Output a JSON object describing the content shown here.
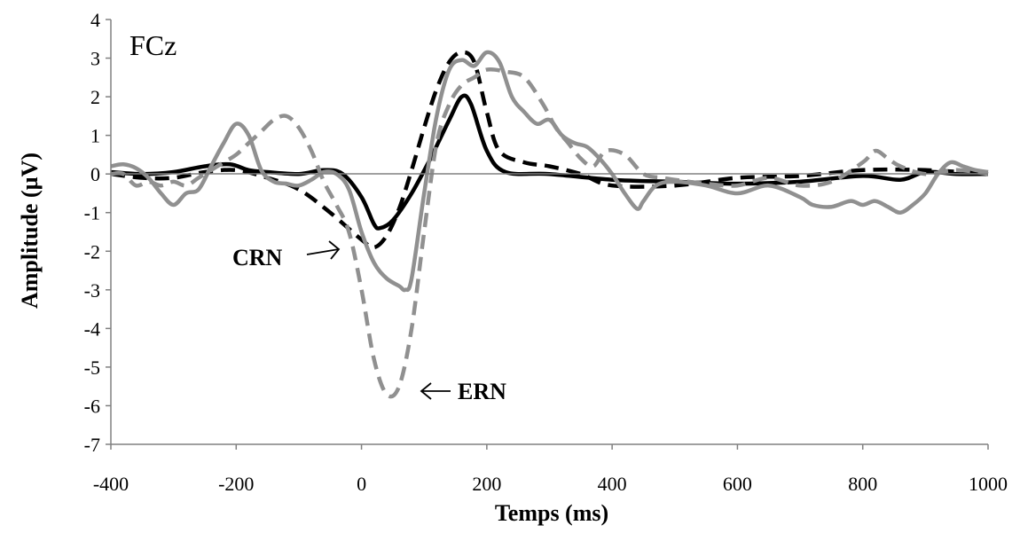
{
  "chart_data": {
    "type": "line",
    "panel_label": "FCz",
    "xlabel": "Temps (ms)",
    "ylabel": "Amplitude (µV)",
    "xlim": [
      -400,
      1000
    ],
    "ylim": [
      -7,
      4
    ],
    "xticks": [
      -400,
      -200,
      0,
      200,
      400,
      600,
      800,
      1000
    ],
    "yticks": [
      4,
      3,
      2,
      1,
      0,
      -1,
      -2,
      -3,
      -4,
      -5,
      -6,
      -7
    ],
    "grid": false,
    "legend": "none",
    "annotations": [
      {
        "text": "CRN"
      },
      {
        "text": "ERN"
      }
    ],
    "series": [
      {
        "style": "solid-black",
        "x": [
          -400,
          -350,
          -300,
          -250,
          -210,
          -180,
          -150,
          -100,
          -60,
          -30,
          0,
          20,
          30,
          50,
          80,
          110,
          140,
          160,
          175,
          200,
          230,
          300,
          400,
          500,
          600,
          700,
          800,
          860,
          900,
          950,
          1000
        ],
        "y": [
          0.05,
          0.0,
          0.05,
          0.2,
          0.25,
          0.1,
          0.05,
          0.0,
          0.1,
          0.0,
          -0.6,
          -1.3,
          -1.4,
          -1.2,
          -0.5,
          0.4,
          1.4,
          2.0,
          1.8,
          0.6,
          0.05,
          0.0,
          -0.15,
          -0.2,
          -0.25,
          -0.2,
          -0.05,
          -0.15,
          0.05,
          0.0,
          0.0
        ]
      },
      {
        "style": "dashed-black",
        "x": [
          -400,
          -350,
          -300,
          -250,
          -200,
          -150,
          -100,
          -50,
          0,
          20,
          40,
          60,
          80,
          100,
          120,
          140,
          160,
          180,
          200,
          220,
          260,
          300,
          350,
          400,
          500,
          600,
          700,
          800,
          900,
          1000
        ],
        "y": [
          0.0,
          -0.1,
          -0.1,
          0.05,
          0.1,
          -0.1,
          -0.4,
          -1.0,
          -1.7,
          -1.9,
          -1.6,
          -0.9,
          0.1,
          1.2,
          2.2,
          2.9,
          3.15,
          2.9,
          1.6,
          0.6,
          0.3,
          0.2,
          0.0,
          -0.3,
          -0.3,
          -0.1,
          -0.05,
          0.1,
          0.1,
          0.0
        ]
      },
      {
        "style": "solid-gray",
        "x": [
          -400,
          -380,
          -360,
          -340,
          -320,
          -300,
          -280,
          -260,
          -240,
          -220,
          -200,
          -180,
          -160,
          -140,
          -120,
          -100,
          -80,
          -60,
          -40,
          -20,
          0,
          20,
          40,
          60,
          70,
          80,
          100,
          120,
          140,
          160,
          180,
          200,
          220,
          240,
          260,
          280,
          300,
          320,
          340,
          360,
          380,
          400,
          420,
          440,
          450,
          470,
          500,
          550,
          600,
          650,
          700,
          720,
          750,
          780,
          800,
          820,
          840,
          860,
          880,
          900,
          920,
          940,
          960,
          980,
          1000
        ],
        "y": [
          0.2,
          0.25,
          0.15,
          -0.1,
          -0.5,
          -0.8,
          -0.5,
          -0.4,
          0.2,
          0.8,
          1.3,
          1.0,
          0.1,
          -0.2,
          -0.25,
          -0.3,
          -0.15,
          0.05,
          0.0,
          -0.4,
          -1.5,
          -2.3,
          -2.7,
          -2.9,
          -3.0,
          -2.7,
          -0.5,
          1.5,
          2.7,
          2.95,
          2.8,
          3.15,
          2.9,
          2.0,
          1.6,
          1.3,
          1.4,
          1.0,
          0.8,
          0.7,
          0.4,
          0.0,
          -0.5,
          -0.9,
          -0.7,
          -0.3,
          -0.2,
          -0.3,
          -0.5,
          -0.3,
          -0.6,
          -0.8,
          -0.85,
          -0.7,
          -0.8,
          -0.7,
          -0.85,
          -1.0,
          -0.8,
          -0.5,
          0.0,
          0.3,
          0.2,
          0.1,
          0.05
        ]
      },
      {
        "style": "dashed-gray",
        "x": [
          -400,
          -380,
          -360,
          -340,
          -320,
          -300,
          -280,
          -260,
          -240,
          -220,
          -200,
          -180,
          -160,
          -140,
          -120,
          -100,
          -80,
          -60,
          -40,
          -20,
          0,
          20,
          40,
          60,
          80,
          100,
          120,
          140,
          160,
          180,
          200,
          230,
          260,
          290,
          310,
          330,
          350,
          370,
          390,
          420,
          450,
          480,
          500,
          550,
          600,
          650,
          700,
          750,
          800,
          820,
          840,
          860,
          900,
          950,
          1000
        ],
        "y": [
          0.0,
          0.0,
          -0.3,
          -0.2,
          -0.3,
          -0.2,
          -0.3,
          -0.1,
          0.1,
          0.3,
          0.5,
          0.8,
          1.1,
          1.4,
          1.5,
          1.2,
          0.6,
          -0.2,
          -0.8,
          -1.5,
          -3.0,
          -4.8,
          -5.7,
          -5.5,
          -4.0,
          -1.5,
          0.8,
          1.8,
          2.3,
          2.5,
          2.7,
          2.65,
          2.5,
          1.8,
          1.2,
          0.8,
          0.4,
          0.2,
          0.6,
          0.5,
          0.0,
          -0.1,
          -0.15,
          -0.25,
          -0.3,
          -0.1,
          -0.3,
          -0.2,
          0.3,
          0.6,
          0.4,
          0.2,
          0.0,
          0.1,
          0.0
        ]
      }
    ]
  }
}
